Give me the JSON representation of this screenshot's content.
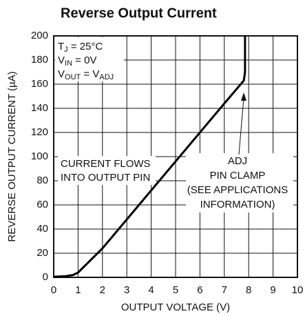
{
  "chart_data": {
    "type": "line",
    "title": "Reverse Output Current",
    "x_label": "OUTPUT VOLTAGE (V)",
    "y_label": "REVERSE OUTPUT CURRENT (µA)",
    "xlim": [
      0,
      10
    ],
    "ylim": [
      0,
      200
    ],
    "xticks": [
      0,
      1,
      2,
      3,
      4,
      5,
      6,
      7,
      8,
      9,
      10
    ],
    "yticks": [
      0,
      20,
      40,
      60,
      80,
      100,
      120,
      140,
      160,
      180,
      200
    ],
    "grid": true,
    "conditions": [
      [
        "T",
        "J",
        " = 25°C"
      ],
      [
        "V",
        "IN",
        " = 0V"
      ],
      [
        "V",
        "OUT",
        " = V",
        "ADJ"
      ]
    ],
    "annotation_current": [
      "CURRENT FLOWS",
      "INTO OUTPUT PIN"
    ],
    "annotation_clamp": [
      "ADJ",
      "PIN CLAMP",
      "(SEE APPLICATIONS",
      "INFORMATION)"
    ],
    "series": [
      {
        "color": "#000000",
        "x": [
          0,
          0.5,
          0.8,
          1,
          1.2,
          1.5,
          2,
          3,
          4,
          5,
          6,
          7,
          7.8,
          7.85,
          7.85
        ],
        "values": [
          0.5,
          1,
          2,
          4,
          8,
          14,
          24,
          48,
          72,
          96,
          120,
          144,
          163,
          170,
          200
        ]
      }
    ]
  }
}
